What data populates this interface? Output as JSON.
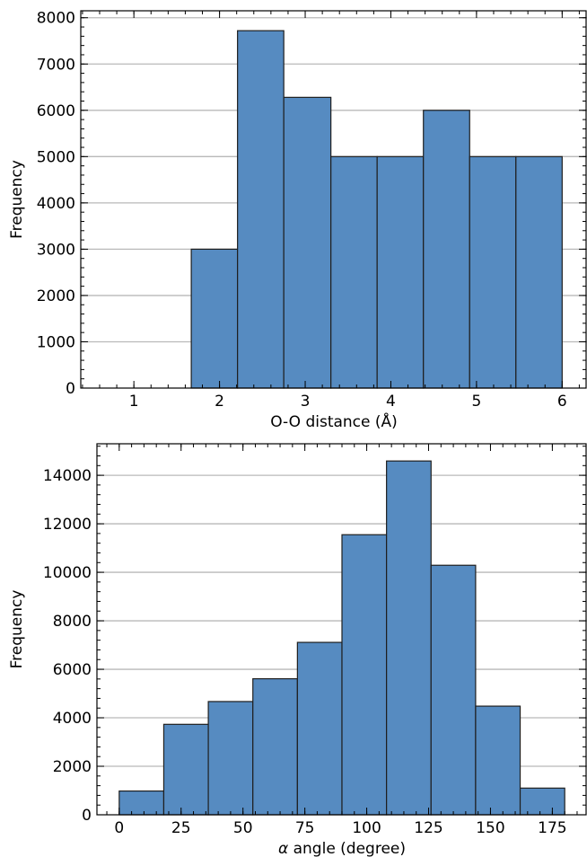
{
  "chart_data": [
    {
      "type": "bar",
      "histogram": true,
      "xlabel": "O-O distance (Å)",
      "ylabel": "Frequency",
      "bin_edges": [
        1.67,
        2.21,
        2.75,
        3.3,
        3.84,
        4.38,
        4.92,
        5.46,
        6.0
      ],
      "values": [
        3000,
        7720,
        6280,
        5000,
        5000,
        6000,
        5000,
        5000
      ],
      "xlim": [
        0.38,
        6.29
      ],
      "ylim": [
        0,
        8150
      ],
      "xticks": [
        1,
        2,
        3,
        4,
        5,
        6
      ],
      "xtick_labels": [
        "1",
        "2",
        "3",
        "4",
        "5",
        "6"
      ],
      "yticks": [
        0,
        1000,
        2000,
        3000,
        4000,
        5000,
        6000,
        7000,
        8000
      ],
      "ytick_labels": [
        "0",
        "1000",
        "2000",
        "3000",
        "4000",
        "5000",
        "6000",
        "7000",
        "8000"
      ],
      "grid": "y",
      "bar_color": "#568bc1",
      "edge_color": "#1f1f1f"
    },
    {
      "type": "bar",
      "histogram": true,
      "xlabel_symbol": "α",
      "xlabel": " angle (degree)",
      "ylabel": "Frequency",
      "bin_edges": [
        0,
        18,
        36,
        54,
        72,
        90,
        108,
        126,
        144,
        162,
        180
      ],
      "values": [
        980,
        3730,
        4670,
        5610,
        7110,
        11550,
        14590,
        10290,
        4480,
        1100
      ],
      "xlim": [
        -9,
        189
      ],
      "ylim": [
        0,
        15300
      ],
      "xticks": [
        0,
        25,
        50,
        75,
        100,
        125,
        150,
        175
      ],
      "xtick_labels": [
        "0",
        "25",
        "50",
        "75",
        "100",
        "125",
        "150",
        "175"
      ],
      "yticks": [
        0,
        2000,
        4000,
        6000,
        8000,
        10000,
        12000,
        14000
      ],
      "ytick_labels": [
        "0",
        "2000",
        "4000",
        "6000",
        "8000",
        "10000",
        "12000",
        "14000"
      ],
      "grid": "y",
      "bar_color": "#568bc1",
      "edge_color": "#1f1f1f"
    }
  ]
}
